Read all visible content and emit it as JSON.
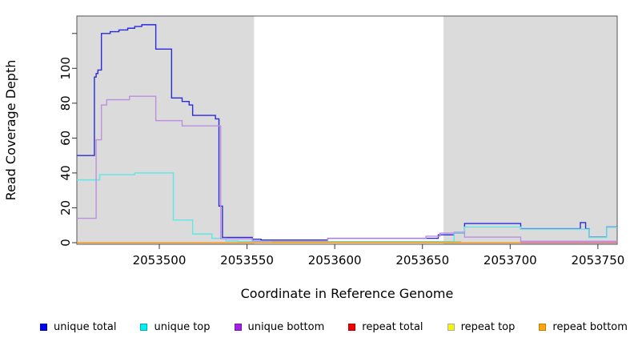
{
  "figure": {
    "xlabel": "Coordinate in Reference Genome",
    "ylabel": "Read Coverage Depth"
  },
  "chart_data": {
    "type": "line",
    "line_style": "step-after",
    "title": "",
    "xlabel": "Coordinate in Reference Genome",
    "ylabel": "Read Coverage Depth",
    "xlim": [
      2053453,
      2053761
    ],
    "ylim": [
      0,
      130
    ],
    "x_ticks": [
      2053500,
      2053550,
      2053600,
      2053650,
      2053700,
      2053750
    ],
    "y_ticks": [
      0,
      20,
      40,
      60,
      80,
      100,
      120
    ],
    "y_tick_labels": [
      "0",
      "20",
      "40",
      "60",
      "80",
      "100",
      ""
    ],
    "grid": false,
    "legend_position": "bottom",
    "plot_background": "#ffffff",
    "band_color": "#dbdbdb",
    "background_bands": [
      {
        "x0": 2053453,
        "x1": 2053554
      },
      {
        "x0": 2053662,
        "x1": 2053761
      }
    ],
    "series": [
      {
        "name": "unique total",
        "color": "#0000f0",
        "border_color": "#0000a8",
        "line_color": "#2b2bd9",
        "points": [
          [
            2053453,
            50
          ],
          [
            2053463,
            95
          ],
          [
            2053464,
            97
          ],
          [
            2053465,
            99
          ],
          [
            2053467,
            120
          ],
          [
            2053472,
            121
          ],
          [
            2053477,
            122
          ],
          [
            2053482,
            123
          ],
          [
            2053486,
            124
          ],
          [
            2053490,
            125
          ],
          [
            2053498,
            111
          ],
          [
            2053507,
            83
          ],
          [
            2053513,
            81
          ],
          [
            2053517,
            79
          ],
          [
            2053519,
            73
          ],
          [
            2053532,
            71
          ],
          [
            2053534,
            21
          ],
          [
            2053536,
            3
          ],
          [
            2053553,
            2
          ],
          [
            2053558,
            1.5
          ],
          [
            2053596,
            2.5
          ],
          [
            2053659,
            4.5
          ],
          [
            2053668,
            5.5
          ],
          [
            2053674,
            11
          ],
          [
            2053706,
            8
          ],
          [
            2053740,
            11.5
          ],
          [
            2053743,
            8
          ],
          [
            2053745,
            3.2
          ],
          [
            2053755,
            9
          ],
          [
            2053761,
            9
          ]
        ]
      },
      {
        "name": "unique top",
        "color": "#00efef",
        "border_color": "#00b0b0",
        "line_color": "#5fe6e6",
        "points": [
          [
            2053453,
            36
          ],
          [
            2053466,
            39
          ],
          [
            2053486,
            40
          ],
          [
            2053508,
            13
          ],
          [
            2053519,
            5
          ],
          [
            2053530,
            2.5
          ],
          [
            2053538,
            1
          ],
          [
            2053545,
            0.6
          ],
          [
            2053668,
            5.5
          ],
          [
            2053674,
            9
          ],
          [
            2053706,
            7.8
          ],
          [
            2053745,
            3
          ],
          [
            2053755,
            8.8
          ],
          [
            2053761,
            8.8
          ]
        ]
      },
      {
        "name": "unique bottom",
        "color": "#a31fe8",
        "border_color": "#7716ab",
        "line_color": "#bd8fde",
        "points": [
          [
            2053453,
            14
          ],
          [
            2053464,
            59
          ],
          [
            2053467,
            79
          ],
          [
            2053470,
            82
          ],
          [
            2053483,
            84
          ],
          [
            2053498,
            70
          ],
          [
            2053513,
            67
          ],
          [
            2053535,
            2.3
          ],
          [
            2053553,
            1
          ],
          [
            2053596,
            2.4
          ],
          [
            2053652,
            3.7
          ],
          [
            2053660,
            5.5
          ],
          [
            2053668,
            6
          ],
          [
            2053674,
            3.2
          ],
          [
            2053706,
            0.8
          ],
          [
            2053761,
            0.8
          ]
        ]
      },
      {
        "name": "repeat total",
        "color": "#f00000",
        "border_color": "#a80000",
        "line_color": "#e06c86",
        "points": [
          [
            2053706,
            0
          ],
          [
            2053761,
            0
          ]
        ]
      },
      {
        "name": "repeat top",
        "color": "#f5f500",
        "border_color": "#ababab",
        "line_color": "#8ccc70",
        "points": [
          [
            2053564,
            0.4
          ],
          [
            2053672,
            0.4
          ]
        ]
      },
      {
        "name": "repeat bottom",
        "color": "#ffa510",
        "border_color": "#c67c00",
        "line_color": "#ff9b1e",
        "points": [
          [
            2053453,
            0
          ],
          [
            2053706,
            0
          ]
        ]
      }
    ]
  }
}
